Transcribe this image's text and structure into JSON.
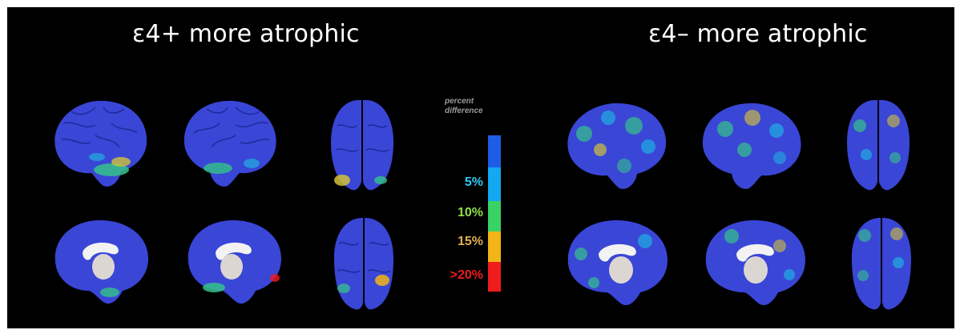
{
  "headings": {
    "left": "ε4+ more atrophic",
    "right": "ε4– more atrophic"
  },
  "legend": {
    "title_line1": "percent",
    "title_line2": "difference",
    "ticks": [
      {
        "label": "5%",
        "color": "#2ec8f0"
      },
      {
        "label": "10%",
        "color": "#8fe04a"
      },
      {
        "label": "15%",
        "color": "#e0b050"
      },
      {
        "label": ">20%",
        "color": "#ee1c1c"
      }
    ],
    "scale_colors": [
      "#1e5ee6",
      "#14a8f0",
      "#39d264",
      "#f2b418",
      "#ee1c1c"
    ]
  },
  "colors": {
    "background": "#000000",
    "brain_base": "#3a46d6",
    "medial_wall": "#dcd6d2"
  }
}
